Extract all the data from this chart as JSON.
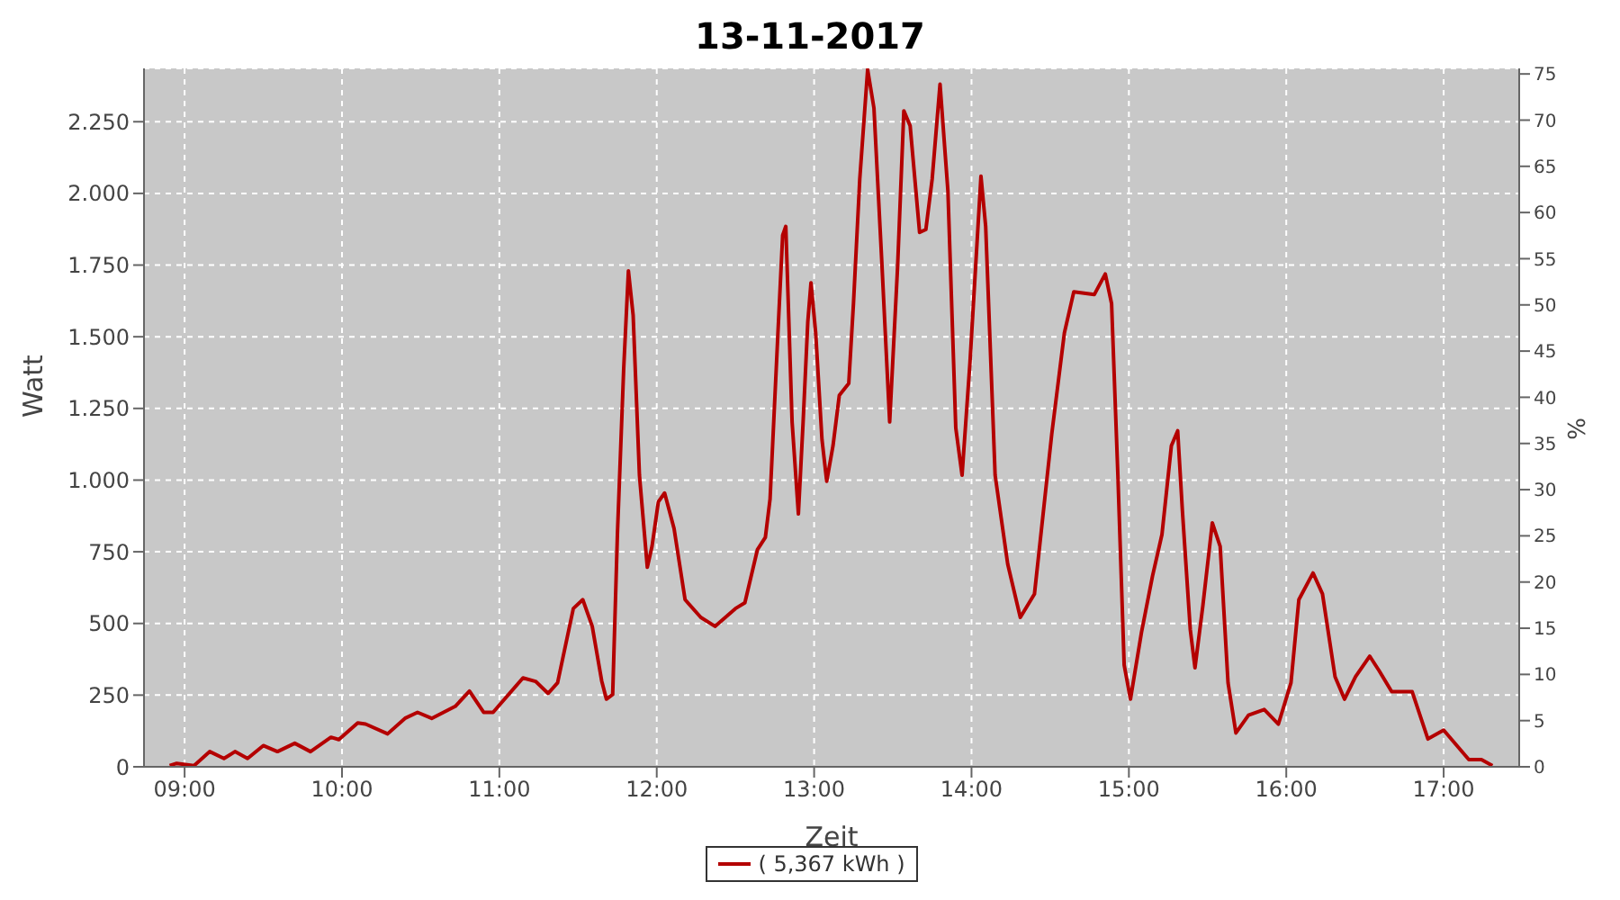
{
  "chart_data": {
    "type": "line",
    "title": "13-11-2017",
    "xlabel": "Zeit",
    "ylabel": "Watt",
    "y2label": "%",
    "xlim": [
      8.742,
      17.48
    ],
    "xticks": [
      {
        "value": 9,
        "label": "09:00"
      },
      {
        "value": 10,
        "label": "10:00"
      },
      {
        "value": 11,
        "label": "11:00"
      },
      {
        "value": 12,
        "label": "12:00"
      },
      {
        "value": 13,
        "label": "13:00"
      },
      {
        "value": 14,
        "label": "14:00"
      },
      {
        "value": 15,
        "label": "15:00"
      },
      {
        "value": 16,
        "label": "16:00"
      },
      {
        "value": 17,
        "label": "17:00"
      }
    ],
    "ylim": [
      0,
      2436
    ],
    "yticks": [
      0,
      250,
      500,
      750,
      {
        "value": 1000,
        "label": "1.000"
      },
      {
        "value": 1250,
        "label": "1.250"
      },
      {
        "value": 1500,
        "label": "1.500"
      },
      {
        "value": 1750,
        "label": "1.750"
      },
      {
        "value": 2000,
        "label": "2.000"
      },
      {
        "value": 2250,
        "label": "2.250"
      }
    ],
    "y2lim": [
      0,
      75.6
    ],
    "y2ticks": [
      0,
      5,
      10,
      15,
      20,
      25,
      30,
      35,
      40,
      45,
      50,
      55,
      60,
      65,
      70,
      75
    ],
    "grid": true,
    "legend": "bottom",
    "marker": "none",
    "line_style": "solid",
    "series": [
      {
        "name": "( 5,367 kWh )",
        "color": "#b40000",
        "x": [
          8.905,
          8.95,
          9.06,
          9.16,
          9.25,
          9.32,
          9.4,
          9.5,
          9.59,
          9.7,
          9.8,
          9.93,
          9.98,
          10.1,
          10.15,
          10.29,
          10.4,
          10.48,
          10.57,
          10.72,
          10.81,
          10.9,
          10.96,
          11.15,
          11.23,
          11.31,
          11.37,
          11.47,
          11.53,
          11.59,
          11.65,
          11.68,
          11.72,
          11.75,
          11.79,
          11.82,
          11.85,
          11.89,
          11.94,
          11.97,
          12.01,
          12.05,
          12.11,
          12.18,
          12.28,
          12.37,
          12.5,
          12.56,
          12.64,
          12.69,
          12.72,
          12.77,
          12.8,
          12.82,
          12.86,
          12.9,
          12.93,
          12.96,
          12.98,
          13.01,
          13.05,
          13.08,
          13.12,
          13.16,
          13.22,
          13.25,
          13.29,
          13.34,
          13.38,
          13.43,
          13.48,
          13.53,
          13.57,
          13.61,
          13.67,
          13.71,
          13.75,
          13.8,
          13.85,
          13.9,
          13.94,
          13.99,
          14.06,
          14.09,
          14.15,
          14.23,
          14.31,
          14.4,
          14.51,
          14.59,
          14.65,
          14.78,
          14.85,
          14.89,
          14.93,
          14.97,
          15.01,
          15.08,
          15.15,
          15.21,
          15.27,
          15.31,
          15.34,
          15.39,
          15.42,
          15.47,
          15.53,
          15.58,
          15.63,
          15.68,
          15.76,
          15.86,
          15.95,
          16.03,
          16.08,
          16.17,
          16.23,
          16.31,
          16.37,
          16.44,
          16.53,
          16.59,
          16.67,
          16.8,
          16.9,
          17,
          17.16,
          17.24,
          17.31
        ],
        "values": [
          4,
          12,
          4,
          53,
          29,
          53,
          29,
          74,
          53,
          82,
          53,
          103,
          95,
          153,
          149,
          115,
          169,
          190,
          169,
          211,
          264,
          190,
          190,
          310,
          298,
          256,
          293,
          552,
          583,
          490,
          300,
          236,
          252,
          810,
          1389,
          1730,
          1575,
          1017,
          696,
          769,
          924,
          955,
          831,
          583,
          521,
          490,
          552,
          572,
          758,
          800,
          934,
          1513,
          1854,
          1885,
          1203,
          882,
          1203,
          1554,
          1688,
          1513,
          1141,
          996,
          1120,
          1296,
          1337,
          1616,
          2050,
          2432,
          2298,
          1761,
          1203,
          1740,
          2288,
          2236,
          1864,
          1874,
          2050,
          2381,
          2009,
          1182,
          1017,
          1409,
          2060,
          1885,
          1017,
          707,
          521,
          603,
          1161,
          1513,
          1657,
          1647,
          1719,
          1616,
          1017,
          355,
          236,
          469,
          665,
          810,
          1120,
          1172,
          893,
          479,
          345,
          562,
          851,
          769,
          293,
          118,
          180,
          200,
          149,
          293,
          583,
          676,
          603,
          314,
          236,
          314,
          386,
          335,
          262,
          262,
          97,
          128,
          25,
          25,
          4
        ]
      }
    ]
  }
}
